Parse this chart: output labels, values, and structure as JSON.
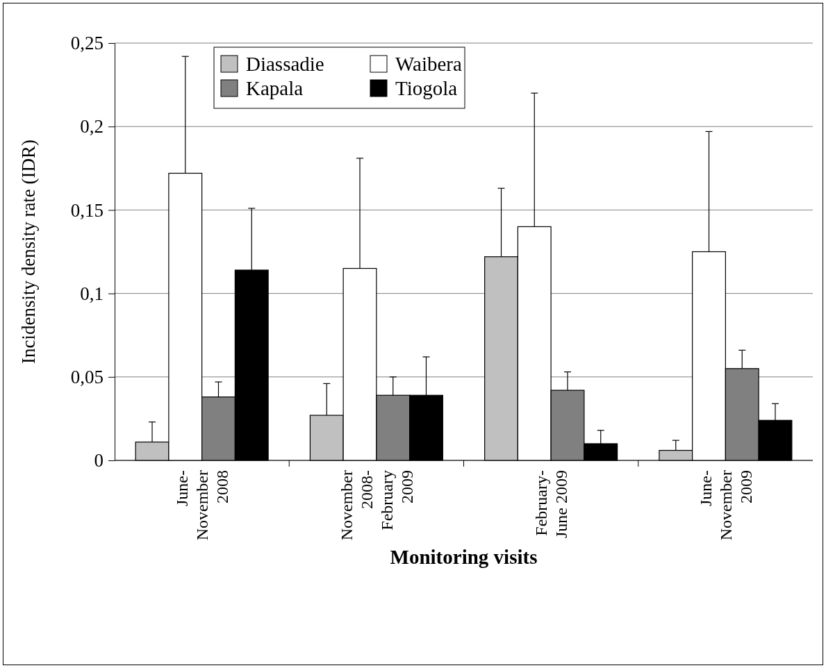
{
  "chart_data": {
    "type": "bar",
    "xlabel": "Monitoring visits",
    "ylabel": "Incidensity density rate (IDR)",
    "categories": [
      "June-November 2008",
      "November 2008-February 2009",
      "February-June 2009",
      "June-November 2009"
    ],
    "series": [
      {
        "name": "Diassadie",
        "color": "#c0c0c0",
        "values": [
          0.011,
          0.027,
          0.122,
          0.006
        ],
        "errors": [
          [
            0.011,
            0.023
          ],
          [
            0.027,
            0.046
          ],
          [
            0.122,
            0.163
          ],
          [
            0.006,
            0.012
          ]
        ]
      },
      {
        "name": "Waibera",
        "color": "#ffffff",
        "values": [
          0.172,
          0.115,
          0.14,
          0.125
        ],
        "errors": [
          [
            0.172,
            0.242
          ],
          [
            0.115,
            0.181
          ],
          [
            0.14,
            0.22
          ],
          [
            0.125,
            0.197
          ]
        ]
      },
      {
        "name": "Kapala",
        "color": "#808080",
        "values": [
          0.038,
          0.039,
          0.042,
          0.055
        ],
        "errors": [
          [
            0.038,
            0.047
          ],
          [
            0.039,
            0.05
          ],
          [
            0.042,
            0.053
          ],
          [
            0.055,
            0.066
          ]
        ]
      },
      {
        "name": "Tiogola",
        "color": "#000000",
        "values": [
          0.114,
          0.039,
          0.01,
          0.024
        ],
        "errors": [
          [
            0.114,
            0.151
          ],
          [
            0.039,
            0.062
          ],
          [
            0.01,
            0.018
          ],
          [
            0.024,
            0.034
          ]
        ]
      }
    ],
    "ylim": [
      0,
      0.25
    ],
    "yticks": [
      0,
      {
        "value": 0.05,
        "label": "0,05"
      },
      {
        "value": 0.1,
        "label": "0,1"
      },
      {
        "value": 0.15,
        "label": "0,15"
      },
      {
        "value": 0.2,
        "label": "0,2"
      },
      {
        "value": 0.25,
        "label": "0,25"
      }
    ],
    "grid": "y",
    "legend": "top"
  }
}
